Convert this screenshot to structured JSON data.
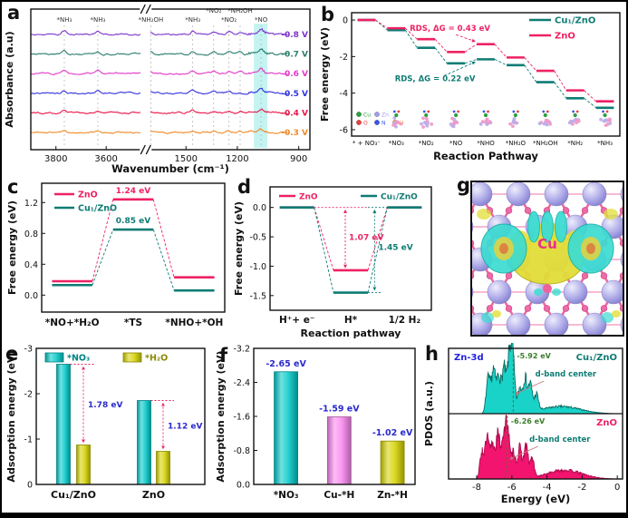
{
  "figure": {
    "background": "#ffffff",
    "border_color": "#000000"
  },
  "colors": {
    "teal": "#0f7c74",
    "pink": "#ee2263",
    "cyan_bar": "#00c8c8",
    "yellow_bar": "#d6d200",
    "magenta_bar": "#fa86ee",
    "annotation_blue": "#2a2ad0",
    "dband_green": "#3a7d2c",
    "zn3d_blue": "#2222dd",
    "highlight_cyan": "#baf2ee"
  },
  "panels": {
    "a": {
      "letter": "a"
    },
    "b": {
      "letter": "b"
    },
    "c": {
      "letter": "c"
    },
    "d": {
      "letter": "d"
    },
    "e": {
      "letter": "e"
    },
    "f": {
      "letter": "f"
    },
    "g": {
      "letter": "g"
    },
    "h": {
      "letter": "h"
    }
  },
  "chart_data": [
    {
      "panel": "a",
      "type": "line",
      "title": "",
      "xlabel": "Wavenumber (cm⁻¹)",
      "ylabel": "Absorbance (a.u)",
      "x_ticks": [
        {
          "label": "3800",
          "f": 0.09
        },
        {
          "label": "3600",
          "f": 0.27
        },
        {
          "label": "1500",
          "f": 0.556
        },
        {
          "label": "1200",
          "f": 0.74
        },
        {
          "label": "900",
          "f": 0.96
        }
      ],
      "axis_break_f": 0.41,
      "series": [
        {
          "label": "-0.8 V",
          "color": "#7b33cc"
        },
        {
          "label": "-0.7 V",
          "color": "#2a7d6d"
        },
        {
          "label": "-0.6 V",
          "color": "#e23ac8"
        },
        {
          "label": "-0.5 V",
          "color": "#3333dd"
        },
        {
          "label": "-0.4 V",
          "color": "#e8174b"
        },
        {
          "label": "-0.3 V",
          "color": "#f08a2a"
        }
      ],
      "peaks": [
        {
          "label": "*NH₃",
          "f": 0.12,
          "row": 0,
          "h": 4.5
        },
        {
          "label": "*NH₃",
          "f": 0.24,
          "row": 0,
          "h": 3.5
        },
        {
          "label": "*NH₂OH",
          "f": 0.43,
          "row": 0,
          "h": 2.5
        },
        {
          "label": "*NH₃",
          "f": 0.58,
          "row": 0,
          "h": 4.0
        },
        {
          "label": "*NO₂",
          "f": 0.655,
          "row": 1,
          "h": 2.5
        },
        {
          "label": "*NO₂",
          "f": 0.71,
          "row": 0,
          "h": 3.0
        },
        {
          "label": "*NH₂OH",
          "f": 0.75,
          "row": 1,
          "h": 2.5
        },
        {
          "label": "*NO",
          "f": 0.825,
          "row": 0,
          "h": 6.0
        }
      ],
      "highlight_band_f": 0.825
    },
    {
      "panel": "b",
      "type": "step-energy",
      "categories": [
        "* + NO₃⁻",
        "*NO₃",
        "*NO₂",
        "*NO",
        "*NHO",
        "*NH₂O",
        "*NH₂OH",
        "*NH₂",
        "*NH₃"
      ],
      "series": [
        {
          "name": "Cu₁/ZnO",
          "color": "#0f7c74",
          "values": [
            0,
            -0.55,
            -1.52,
            -2.37,
            -2.15,
            -2.47,
            -3.4,
            -4.28,
            -4.8
          ]
        },
        {
          "name": "ZnO",
          "color": "#ee2263",
          "values": [
            0,
            -0.45,
            -1.05,
            -1.75,
            -1.32,
            -2.05,
            -2.78,
            -3.85,
            -4.45
          ]
        }
      ],
      "ylim": [
        -6.35,
        0.4
      ],
      "yticks": [
        0,
        -2,
        -4,
        -6
      ],
      "ylabel": "Free energy (eV)",
      "xlabel": "Reaction Pathway",
      "annotations": [
        {
          "text": "RDS, ΔG = 0.43 eV",
          "color": "#ee2263"
        },
        {
          "text": "RDS, ΔG = 0.22 eV",
          "color": "#0f7c74"
        }
      ],
      "atom_legend": [
        {
          "label": "Cu",
          "color": "#2e9e3e"
        },
        {
          "label": "Zn",
          "color": "#9f9fe8"
        },
        {
          "label": "O",
          "color": "#e84040"
        },
        {
          "label": "N",
          "color": "#3a56e8"
        },
        {
          "label": "H",
          "color": "#f0953a"
        }
      ]
    },
    {
      "panel": "c",
      "type": "step-energy",
      "categories": [
        "*NO+*H₂O",
        "*TS",
        "*NHO+*OH"
      ],
      "series": [
        {
          "name": "ZnO",
          "color": "#ee2263",
          "values": [
            0.18,
            1.24,
            0.23
          ]
        },
        {
          "name": "Cu₁/ZnO",
          "color": "#0f7c74",
          "values": [
            0.13,
            0.85,
            0.06
          ]
        }
      ],
      "ylim": [
        -0.22,
        1.45
      ],
      "yticks": [
        0.0,
        0.4,
        0.8,
        1.2
      ],
      "ylabel": "Free energy (eV)",
      "annotations": [
        {
          "text": "1.24 eV",
          "color": "#ee2263"
        },
        {
          "text": "0.85 eV",
          "color": "#0f7c74"
        }
      ]
    },
    {
      "panel": "d",
      "type": "step-energy",
      "categories": [
        "H⁺+ e⁻",
        "H*",
        "1/2 H₂"
      ],
      "series": [
        {
          "name": "ZnO",
          "color": "#ee2263",
          "values": [
            0,
            -1.07,
            0
          ]
        },
        {
          "name": "Cu₁/ZnO",
          "color": "#0f7c74",
          "values": [
            0,
            -1.45,
            0
          ]
        }
      ],
      "ylim": [
        -1.75,
        0.35
      ],
      "yticks": [
        0.0,
        -0.5,
        -1.0,
        -1.5
      ],
      "ylabel": "Free energy (eV)",
      "xlabel": "Reaction pathway",
      "annotations": [
        {
          "text": "1.07 eV",
          "color": "#ee2263"
        },
        {
          "text": "1.45 eV",
          "color": "#0f7c74"
        }
      ]
    },
    {
      "panel": "e",
      "type": "bar",
      "categories": [
        "Cu₁/ZnO",
        "ZnO"
      ],
      "series": [
        {
          "name": "*NO₃",
          "color": "#00c8c8",
          "values": [
            -2.65,
            -1.85
          ]
        },
        {
          "name": "*H₂O",
          "color": "#d6d200",
          "values": [
            -0.87,
            -0.73
          ]
        }
      ],
      "yticks": [
        0,
        -1,
        -2,
        -3
      ],
      "ylim": [
        0,
        -3
      ],
      "ylabel": "Adsorption energy (eV)",
      "annotations": [
        {
          "text": "1.78 eV"
        },
        {
          "text": "1.12 eV"
        }
      ],
      "annotation_color": "#2a2ad0",
      "arrow_color": "#ee2263"
    },
    {
      "panel": "f",
      "type": "bar",
      "categories": [
        "*NO₃",
        "Cu-*H",
        "Zn-*H"
      ],
      "values": [
        -2.65,
        -1.59,
        -1.02
      ],
      "bar_colors": [
        "#00c8c8",
        "#fa86ee",
        "#d6d200"
      ],
      "value_labels": [
        "-2.65 eV",
        "-1.59 eV",
        "-1.02 eV"
      ],
      "yticks": [
        0.0,
        -0.8,
        -1.6,
        -2.4,
        -3.2
      ],
      "ylim": [
        0,
        -3.2
      ],
      "ylabel": "Adsorption energy (eV)",
      "label_color": "#2a2ad0"
    },
    {
      "panel": "g",
      "type": "structure",
      "center_label": "Cu",
      "center_label_color": "#e8308a",
      "atom_color": "#a9a5e6",
      "bond_color": "#f05898",
      "oxygen_color": "#f06aa8",
      "iso_positive_color": "#e2de38",
      "iso_negative_color": "#3cdcd2"
    },
    {
      "panel": "h",
      "type": "pdos",
      "xlabel": "Energy (eV)",
      "ylabel": "PDOS (a.u.)",
      "xticks": [
        -8,
        -6,
        -4,
        -2,
        0
      ],
      "xlim": [
        -9.6,
        0.3
      ],
      "subplots": [
        {
          "name": "Cu₁/ZnO",
          "name_color": "#0f7c74",
          "fill": "#19d3c9",
          "edge": "#0a6b62",
          "dband": -5.92,
          "dband_label": "-5.92 eV",
          "orbital_label": "Zn-3d",
          "orbital_color": "#2222dd",
          "annotation": "d-band center",
          "annotation_color": "#0f7c74"
        },
        {
          "name": "ZnO",
          "name_color": "#ee2263",
          "fill": "#f2146e",
          "edge": "#b00a4e",
          "dband": -6.26,
          "dband_label": "-6.26 eV",
          "annotation": "d-band center",
          "annotation_color": "#0f7c74"
        }
      ],
      "dband_label_color": "#3a7d2c"
    }
  ]
}
